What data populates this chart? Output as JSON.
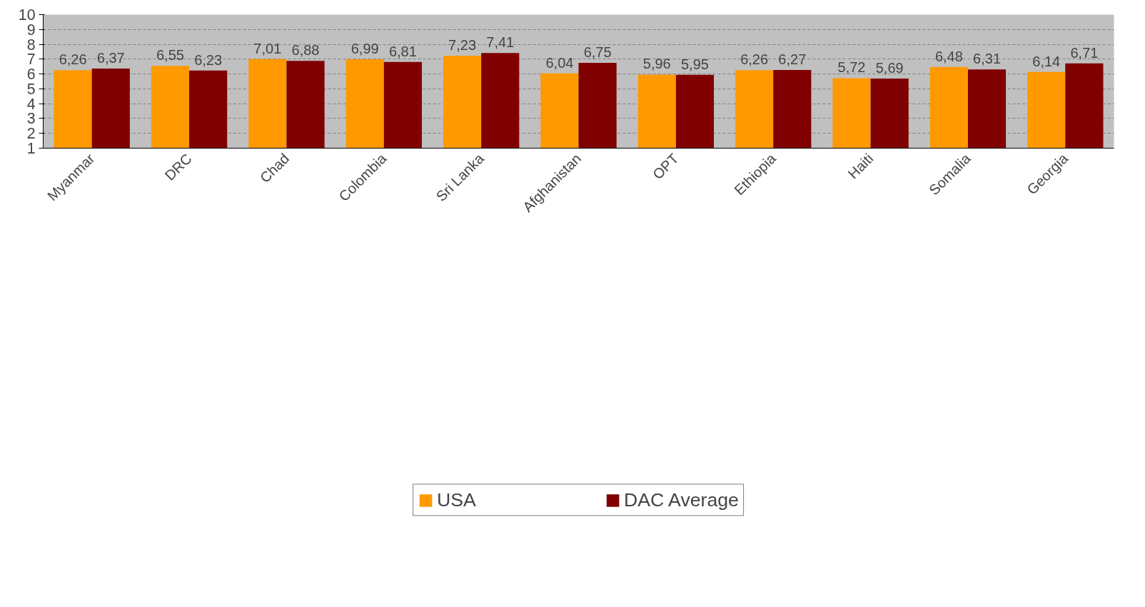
{
  "chart_data": {
    "type": "bar",
    "categories": [
      "Myanmar",
      "DRC",
      "Chad",
      "Colombia",
      "Sri Lanka",
      "Afghanistan",
      "OPT",
      "Ethiopia",
      "Haiti",
      "Somalia",
      "Georgia"
    ],
    "series": [
      {
        "name": "USA",
        "color": "#ff9900",
        "values": [
          6.26,
          6.55,
          7.01,
          6.99,
          7.23,
          6.04,
          5.96,
          6.26,
          5.72,
          6.48,
          6.14
        ],
        "value_labels": [
          "6,26",
          "6,55",
          "7,01",
          "6,99",
          "7,23",
          "6,04",
          "5,96",
          "6,26",
          "5,72",
          "6,48",
          "6,14"
        ]
      },
      {
        "name": "DAC Average",
        "color": "#800000",
        "values": [
          6.37,
          6.23,
          6.88,
          6.81,
          7.41,
          6.75,
          5.95,
          6.27,
          5.69,
          6.31,
          6.71
        ],
        "value_labels": [
          "6,37",
          "6,23",
          "6,88",
          "6,81",
          "7,41",
          "6,75",
          "5,95",
          "6,27",
          "5,69",
          "6,31",
          "6,71"
        ]
      }
    ],
    "ylim": [
      1,
      10
    ],
    "yticks": [
      1,
      2,
      3,
      4,
      5,
      6,
      7,
      8,
      9,
      10
    ],
    "grid": "y",
    "legend": "bottom"
  }
}
